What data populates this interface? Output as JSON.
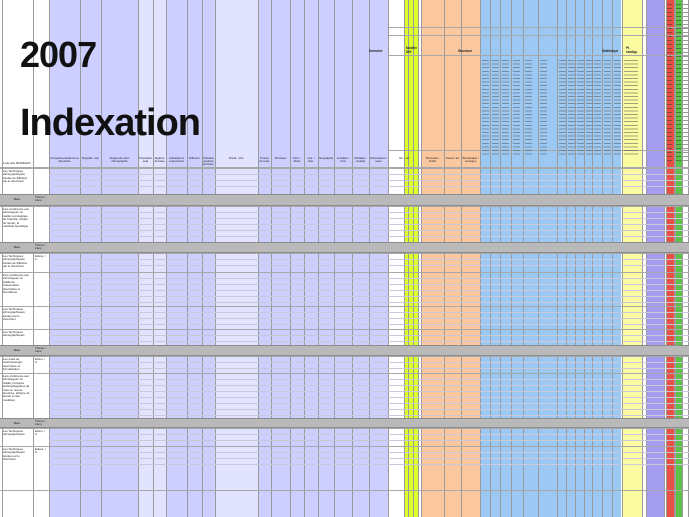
{
  "title_year": "2007",
  "title_word": "Indexation",
  "header_groups": {
    "domaine": "Domaine",
    "modele_diff": "Modèle Diff.",
    "structure": "Structure",
    "statistique": "Statistique",
    "pt_stratigraphie": "Pt. stratigr."
  },
  "first_col_header": "Liste des MODÈLES",
  "col_headers": [
    "Complémentarité de la démarche",
    "Régulier: réel",
    "Diagnostic avec ethnographie",
    "Procédure: aval",
    "Algèbre de base",
    "Individuel et expressions",
    "Diffusion",
    "Préhistoire: gestions préhistoriques",
    "Prédé. / Act.",
    "Procès de tuple",
    "Principes",
    "Pers. / Mixte",
    "Gra. / Hist.",
    "Géographie",
    "Localités / Unis",
    "Modèles / modèle",
    "Informations / texte",
    "Ré. / tél.",
    "Protocole / Outils",
    "Visuel / art",
    "Sémantique / ouvrages"
  ],
  "rows": [
    {
      "label": "Les Techniques ethnographiques; études de diffusion par le chercheur",
      "code": "",
      "header": false
    },
    {
      "label": "Base",
      "code": "Thème / trans.",
      "header": true
    },
    {
      "label": "1ère préférence aux ethnologues: la réalité sociologique de l'identité, l'étude du terrain, la méthode spécifique",
      "code": "",
      "header": false
    },
    {
      "label": "Base",
      "code": "Thème / trans.",
      "header": true
    },
    {
      "label": "Les Techniques ethnographiques; études de diffusion par le chercheur",
      "code": "Educa. / C.",
      "header": false
    },
    {
      "label": "1ère préférence aux ethnologues: la réalité de l'observation descriptive et formalisme",
      "code": "",
      "header": false
    },
    {
      "label": "Les Techniques ethnographiques; études par le chercheur",
      "code": "",
      "header": false
    },
    {
      "label": "Les Techniques ethnographiques",
      "code": "",
      "header": false
    },
    {
      "label": "Base",
      "code": "Thème / trans.",
      "header": true
    },
    {
      "label": "Les outils de l'anthropologie: description et formalisation",
      "code": "Ethno. / C.",
      "header": false
    },
    {
      "label": "1ère préférence aux ethnologues: la réalité, principes anthropologiques (la mise en œuvre, structure, éthique de terrain et des modèles)",
      "code": "",
      "header": false
    },
    {
      "label": "Base",
      "code": "Thème / trans.",
      "header": true
    },
    {
      "label": "Les Techniques ethnographiques",
      "code": "Ethno. / C.",
      "header": false
    },
    {
      "label": "Les Techniques ethnographiques; études par le chercheur",
      "code": "Educa. / C.",
      "header": false
    }
  ],
  "colors": {
    "lavender": "#cccfff",
    "lavender_light": "#e1e3ff",
    "yellow_green": "#dfff28",
    "peach": "#fbc79e",
    "sky": "#9cc8f4",
    "pale_yellow": "#fbfba2",
    "violet": "#a59df0",
    "red": "#e85046",
    "green": "#5ec24a",
    "header_gray": "#b9b9b9"
  }
}
